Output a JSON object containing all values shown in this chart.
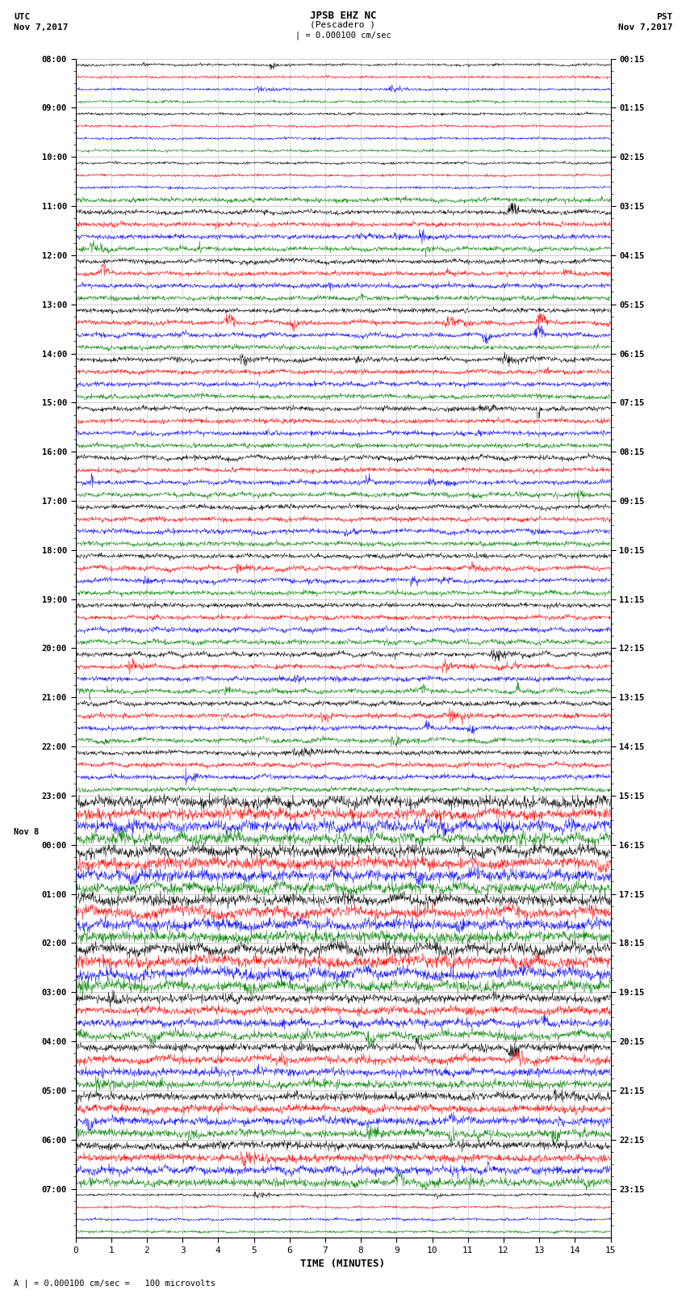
{
  "title_line1": "JPSB EHZ NC",
  "title_line2": "(Pescadero )",
  "title_line3": "| = 0.000100 cm/sec",
  "label_utc": "UTC",
  "label_date_left": "Nov 7,2017",
  "label_pst": "PST",
  "label_date_right": "Nov 7,2017",
  "label_nov8": "Nov 8",
  "xlabel": "TIME (MINUTES)",
  "footnote": "A | = 0.000100 cm/sec =   100 microvolts",
  "colors_cycle": [
    "black",
    "red",
    "blue",
    "green"
  ],
  "n_rows": 96,
  "bg_color": "#ffffff",
  "grid_color": "#aaaaaa",
  "trace_amplitude": 0.42,
  "noise_base": 0.06,
  "xmin": 0,
  "xmax": 15,
  "left_times_utc": [
    "08:00",
    "",
    "",
    "",
    "09:00",
    "",
    "",
    "",
    "10:00",
    "",
    "",
    "",
    "11:00",
    "",
    "",
    "",
    "12:00",
    "",
    "",
    "",
    "13:00",
    "",
    "",
    "",
    "14:00",
    "",
    "",
    "",
    "15:00",
    "",
    "",
    "",
    "16:00",
    "",
    "",
    "",
    "17:00",
    "",
    "",
    "",
    "18:00",
    "",
    "",
    "",
    "19:00",
    "",
    "",
    "",
    "20:00",
    "",
    "",
    "",
    "21:00",
    "",
    "",
    "",
    "22:00",
    "",
    "",
    "",
    "23:00",
    "",
    "",
    "",
    "00:00",
    "",
    "",
    "",
    "01:00",
    "",
    "",
    "",
    "02:00",
    "",
    "",
    "",
    "03:00",
    "",
    "",
    "",
    "04:00",
    "",
    "",
    "",
    "05:00",
    "",
    "",
    "",
    "06:00",
    "",
    "",
    "",
    "07:00",
    "",
    "",
    ""
  ],
  "right_times_pst": [
    "00:15",
    "",
    "",
    "",
    "01:15",
    "",
    "",
    "",
    "02:15",
    "",
    "",
    "",
    "03:15",
    "",
    "",
    "",
    "04:15",
    "",
    "",
    "",
    "05:15",
    "",
    "",
    "",
    "06:15",
    "",
    "",
    "",
    "07:15",
    "",
    "",
    "",
    "08:15",
    "",
    "",
    "",
    "09:15",
    "",
    "",
    "",
    "10:15",
    "",
    "",
    "",
    "11:15",
    "",
    "",
    "",
    "12:15",
    "",
    "",
    "",
    "13:15",
    "",
    "",
    "",
    "14:15",
    "",
    "",
    "",
    "15:15",
    "",
    "",
    "",
    "16:15",
    "",
    "",
    "",
    "17:15",
    "",
    "",
    "",
    "18:15",
    "",
    "",
    "",
    "19:15",
    "",
    "",
    "",
    "20:15",
    "",
    "",
    "",
    "21:15",
    "",
    "",
    "",
    "22:15",
    "",
    "",
    "",
    "23:15",
    "",
    "",
    ""
  ],
  "date_change_row": 64,
  "high_activity_rows": [
    60,
    61,
    62,
    63,
    64,
    65,
    66,
    67,
    68,
    69,
    70,
    71,
    72,
    73,
    74,
    75,
    76,
    77,
    78,
    79,
    80,
    81,
    82,
    83,
    84,
    85,
    86,
    87,
    88,
    89,
    90,
    91
  ],
  "very_high_rows": [
    60,
    61,
    62,
    63,
    64,
    65,
    66,
    67,
    68,
    69,
    70,
    71,
    72,
    73,
    74,
    75
  ],
  "medium_rows": [
    11,
    12,
    13,
    14,
    15,
    16,
    17,
    18,
    19,
    20,
    21,
    22,
    23,
    24,
    25,
    26,
    27,
    28,
    29,
    30,
    31,
    32,
    33,
    34,
    35,
    36,
    37,
    38,
    39,
    40,
    41,
    42,
    43,
    44,
    45,
    46,
    47,
    48,
    49,
    50,
    51,
    52,
    53,
    54,
    55,
    56,
    57,
    58,
    59
  ]
}
